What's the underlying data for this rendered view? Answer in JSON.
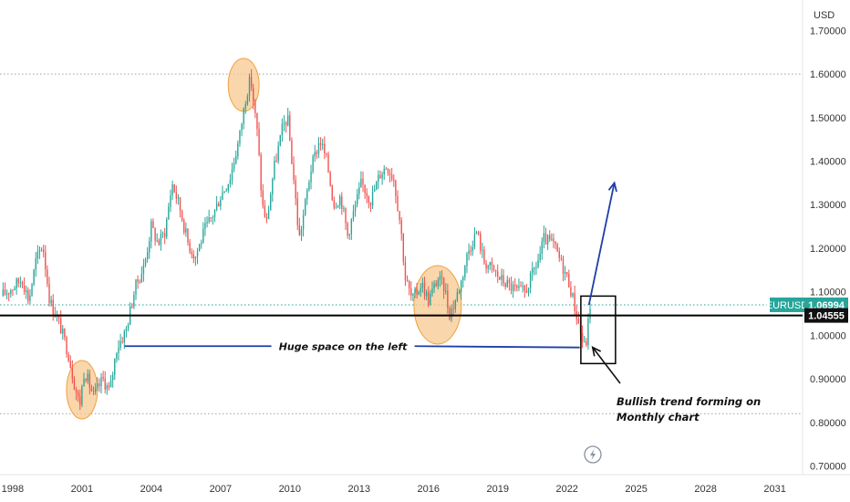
{
  "chart_data": {
    "type": "candlestick",
    "symbol": "EURUSD",
    "currency": "USD",
    "timeframe": "Monthly",
    "price_axis": {
      "ticks": [
        {
          "value": 1.7,
          "label": "1.70000"
        },
        {
          "value": 1.6,
          "label": "1.60000"
        },
        {
          "value": 1.5,
          "label": "1.50000"
        },
        {
          "value": 1.4,
          "label": "1.40000"
        },
        {
          "value": 1.3,
          "label": "1.30000"
        },
        {
          "value": 1.2,
          "label": "1.20000"
        },
        {
          "value": 1.1,
          "label": "1.10000"
        },
        {
          "value": 1.0,
          "label": "1.00000"
        },
        {
          "value": 0.9,
          "label": "0.90000"
        },
        {
          "value": 0.8,
          "label": "0.80000"
        },
        {
          "value": 0.7,
          "label": "0.70000"
        }
      ],
      "range": [
        0.68,
        1.77
      ]
    },
    "time_axis": {
      "ticks": [
        {
          "value": 1998,
          "label": "1998"
        },
        {
          "value": 2001,
          "label": "2001"
        },
        {
          "value": 2004,
          "label": "2004"
        },
        {
          "value": 2007,
          "label": "2007"
        },
        {
          "value": 2010,
          "label": "2010"
        },
        {
          "value": 2013,
          "label": "2013"
        },
        {
          "value": 2016,
          "label": "2016"
        },
        {
          "value": 2019,
          "label": "2019"
        },
        {
          "value": 2022,
          "label": "2022"
        },
        {
          "value": 2025,
          "label": "2025"
        },
        {
          "value": 2028,
          "label": "2028"
        },
        {
          "value": 2031,
          "label": "2031"
        }
      ],
      "range": [
        1997.45,
        2032.2
      ]
    },
    "price_path": [
      [
        1997.5,
        1.09
      ],
      [
        1998.0,
        1.11
      ],
      [
        1998.4,
        1.13
      ],
      [
        1998.7,
        1.08
      ],
      [
        1999.0,
        1.17
      ],
      [
        1999.3,
        1.21
      ],
      [
        1999.6,
        1.08
      ],
      [
        2000.0,
        1.03
      ],
      [
        2000.4,
        0.96
      ],
      [
        2000.7,
        0.88
      ],
      [
        2000.9,
        0.84
      ],
      [
        2001.1,
        0.92
      ],
      [
        2001.5,
        0.86
      ],
      [
        2001.9,
        0.9
      ],
      [
        2002.2,
        0.87
      ],
      [
        2002.5,
        0.97
      ],
      [
        2002.9,
        1.01
      ],
      [
        2003.3,
        1.11
      ],
      [
        2003.7,
        1.16
      ],
      [
        2004.0,
        1.25
      ],
      [
        2004.3,
        1.21
      ],
      [
        2004.6,
        1.24
      ],
      [
        2004.9,
        1.35
      ],
      [
        2005.2,
        1.3
      ],
      [
        2005.6,
        1.21
      ],
      [
        2005.9,
        1.18
      ],
      [
        2006.3,
        1.24
      ],
      [
        2006.7,
        1.28
      ],
      [
        2007.0,
        1.32
      ],
      [
        2007.4,
        1.36
      ],
      [
        2007.8,
        1.45
      ],
      [
        2008.1,
        1.55
      ],
      [
        2008.3,
        1.59
      ],
      [
        2008.6,
        1.46
      ],
      [
        2008.8,
        1.3
      ],
      [
        2009.0,
        1.26
      ],
      [
        2009.3,
        1.38
      ],
      [
        2009.7,
        1.48
      ],
      [
        2009.9,
        1.5
      ],
      [
        2010.2,
        1.34
      ],
      [
        2010.4,
        1.22
      ],
      [
        2010.6,
        1.28
      ],
      [
        2010.9,
        1.38
      ],
      [
        2011.3,
        1.45
      ],
      [
        2011.6,
        1.4
      ],
      [
        2011.9,
        1.3
      ],
      [
        2012.2,
        1.32
      ],
      [
        2012.5,
        1.23
      ],
      [
        2012.8,
        1.29
      ],
      [
        2013.1,
        1.35
      ],
      [
        2013.5,
        1.31
      ],
      [
        2013.9,
        1.37
      ],
      [
        2014.2,
        1.39
      ],
      [
        2014.5,
        1.36
      ],
      [
        2014.8,
        1.25
      ],
      [
        2015.0,
        1.13
      ],
      [
        2015.3,
        1.08
      ],
      [
        2015.7,
        1.12
      ],
      [
        2016.0,
        1.08
      ],
      [
        2016.4,
        1.13
      ],
      [
        2016.7,
        1.11
      ],
      [
        2016.9,
        1.05
      ],
      [
        2017.1,
        1.07
      ],
      [
        2017.4,
        1.12
      ],
      [
        2017.7,
        1.19
      ],
      [
        2018.1,
        1.24
      ],
      [
        2018.4,
        1.17
      ],
      [
        2018.8,
        1.15
      ],
      [
        2019.1,
        1.13
      ],
      [
        2019.6,
        1.11
      ],
      [
        2019.9,
        1.1
      ],
      [
        2020.2,
        1.1
      ],
      [
        2020.5,
        1.14
      ],
      [
        2020.8,
        1.18
      ],
      [
        2021.0,
        1.22
      ],
      [
        2021.4,
        1.21
      ],
      [
        2021.8,
        1.16
      ],
      [
        2022.1,
        1.12
      ],
      [
        2022.4,
        1.05
      ],
      [
        2022.7,
        0.98
      ],
      [
        2022.8,
        0.97
      ],
      [
        2023.0,
        1.07
      ]
    ],
    "last_price": {
      "value": 1.06994,
      "label": "1.06994"
    },
    "support_line": {
      "value": 1.04555,
      "label": "1.04555"
    },
    "guide_levels": [
      1.6,
      1.07,
      0.82
    ],
    "annotations": {
      "huge_space": "Huge space on the left",
      "bullish_l1": "Bullish trend forming on",
      "bullish_l2": "Monthly chart"
    },
    "highlight_circles": [
      {
        "x": 2001.0,
        "y": 0.875
      },
      {
        "x": 2008.0,
        "y": 1.575
      },
      {
        "x": 2016.4,
        "y": 1.07
      }
    ],
    "focus_box": {
      "x0": 2022.6,
      "x1": 2024.1,
      "y0": 0.935,
      "y1": 1.09
    },
    "projection_arrow": {
      "from": [
        2022.95,
        1.07
      ],
      "to": [
        2024.05,
        1.35
      ]
    },
    "colors": {
      "up": "#26a69a",
      "down": "#ef5350",
      "highlight_fill": "#f7c88f",
      "highlight_stroke": "#f0a040",
      "trend_line": "#1f3fa6",
      "badge": "#26a69a",
      "support_badge": "#111111"
    },
    "icons": {
      "replay": "lightning-icon"
    }
  }
}
